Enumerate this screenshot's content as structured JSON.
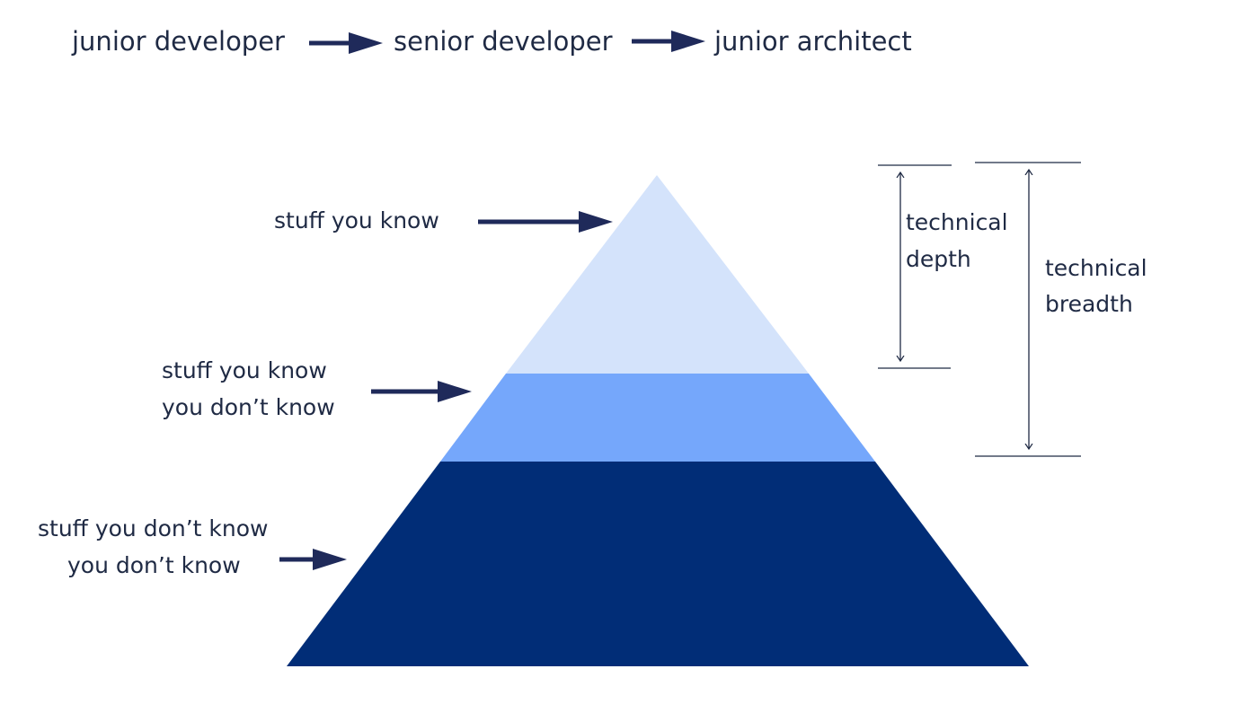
{
  "colors": {
    "text": "#1f2a44",
    "arrow": "#1f2a5a",
    "tier_top": "#d4e3fb",
    "tier_middle": "#75a7fb",
    "tier_bottom": "#012d77",
    "rule": "#1f2a44"
  },
  "career_path": {
    "steps": [
      "junior developer",
      "senior developer",
      "junior architect"
    ]
  },
  "pyramid": {
    "tiers": [
      {
        "lines": [
          "stuff you know"
        ]
      },
      {
        "lines": [
          "stuff you know",
          "you don’t know"
        ]
      },
      {
        "lines": [
          "stuff you don’t know",
          "you don’t know"
        ]
      }
    ]
  },
  "dimensions": {
    "depth": {
      "lines": [
        "technical",
        "depth"
      ]
    },
    "breadth": {
      "lines": [
        "technical",
        "breadth"
      ]
    }
  }
}
